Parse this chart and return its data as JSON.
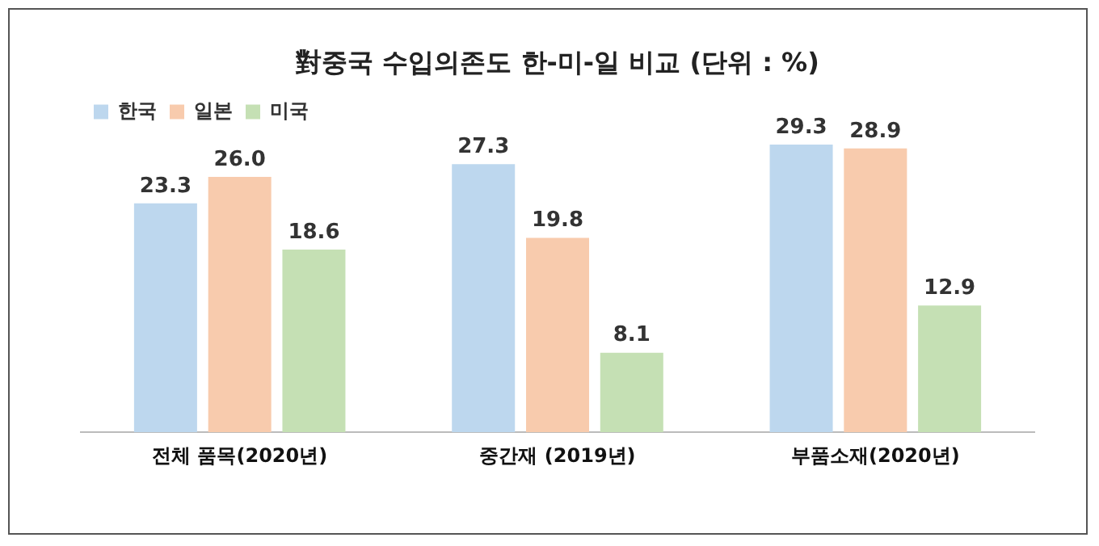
{
  "chart_data": {
    "type": "bar",
    "title": "對중국 수입의존도 한-미-일 비교 (단위 : %)",
    "categories": [
      "전체 품목(2020년)",
      "중간재 (2019년)",
      "부품소재(2020년)"
    ],
    "series": [
      {
        "name": "한국",
        "color": "#bdd7ee",
        "values": [
          23.3,
          27.3,
          29.3
        ],
        "value_labels": [
          "23.3",
          "27.3",
          "29.3"
        ]
      },
      {
        "name": "일본",
        "color": "#f8cbad",
        "values": [
          26,
          19.8,
          28.9
        ],
        "value_labels": [
          "26.0",
          "19.8",
          "28.9"
        ]
      },
      {
        "name": "미국",
        "color": "#c5e0b4",
        "values": [
          18.6,
          8.1,
          12.9
        ],
        "value_labels": [
          "18.6",
          "8.1",
          "12.9"
        ]
      }
    ],
    "tick_labels": "x",
    "legend": "top left",
    "grid": false
  }
}
